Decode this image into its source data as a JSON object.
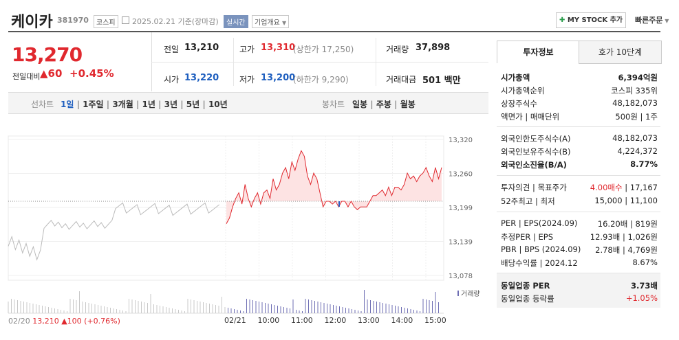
{
  "header": {
    "company_name": "케이카",
    "code": "381970",
    "market": "코스피",
    "date_basis": "2025.02.21  기준(장마감)",
    "realtime_tag": "실시간",
    "overview_tag": "기업개요",
    "mystock_button": "MY STOCK 추가",
    "quick_order": "빠른주문"
  },
  "price": {
    "current": "13,270",
    "change_label": "전일대비",
    "change": "60",
    "change_pct": "+0.45%"
  },
  "summary": {
    "prev_label": "전일",
    "prev": "13,210",
    "high_label": "고가",
    "high": "13,310",
    "upper_limit": "(상한가 17,250)",
    "volume_label": "거래량",
    "volume": "37,898",
    "open_label": "시가",
    "open": "13,220",
    "low_label": "저가",
    "low": "13,200",
    "lower_limit": "(하한가 9,290)",
    "amount_label": "거래대금",
    "amount": "501 백만"
  },
  "period_tabs": {
    "line_label": "선차트",
    "line": [
      "1일",
      "1주일",
      "3개월",
      "1년",
      "3년",
      "5년",
      "10년"
    ],
    "candle_label": "봉차트",
    "candle": [
      "일봉",
      "주봉",
      "월봉"
    ]
  },
  "chart_data": {
    "type": "line",
    "y_ticks": [
      "13,320",
      "13,260",
      "13,199",
      "13,139",
      "13,078"
    ],
    "ylim": [
      13078,
      13320
    ],
    "baseline": 13210,
    "x_ticks": [
      "02/21",
      "10:00",
      "11:00",
      "12:00",
      "13:00",
      "14:00",
      "15:00"
    ],
    "volume_label": "거래량",
    "prev_day_summary": {
      "date": "02/20",
      "close": "13,210",
      "change": "100",
      "pct": "(+0.76%)"
    },
    "series": [
      {
        "values": [
          13170,
          13180,
          13200,
          13215,
          13225,
          13205,
          13240,
          13215,
          13200,
          13215,
          13225,
          13205,
          13225,
          13230,
          13215,
          13250,
          13230,
          13240,
          13260,
          13270,
          13250,
          13280,
          13265,
          13285,
          13300,
          13290,
          13255,
          13240,
          13260,
          13250,
          13225,
          13200,
          13210,
          13210,
          13205,
          13210,
          13200,
          13210,
          13210,
          13200,
          13210,
          13200,
          13195,
          13200,
          13200,
          13200,
          13210,
          13220,
          13220,
          13225,
          13230,
          13220,
          13235,
          13220,
          13235,
          13235,
          13230,
          13240,
          13260,
          13250,
          13255,
          13245,
          13255,
          13260,
          13270,
          13255,
          13245,
          13270,
          13250,
          13270
        ]
      }
    ]
  },
  "info_tabs": [
    "투자정보",
    "호가 10단계"
  ],
  "info_rows": [
    {
      "label": "시가총액",
      "value": "6,394억원"
    },
    {
      "label": "시가총액순위",
      "value": "코스피 335위"
    },
    {
      "label": "상장주식수",
      "value": "48,182,073"
    },
    {
      "label": "액면가 | 매매단위",
      "value": "500원  |  1주"
    },
    {
      "label": "외국인한도주식수(A)",
      "value": "48,182,073"
    },
    {
      "label": "외국인보유주식수(B)",
      "value": "4,224,372"
    },
    {
      "label": "외국인소진율(B/A)",
      "value": "8.77%"
    },
    {
      "label": "투자의견 | 목표주가",
      "value_red": "4.00매수",
      "value": "17,167"
    },
    {
      "label": "52주최고 | 최저",
      "value": "15,000  |  11,100"
    },
    {
      "label": "PER | EPS(2024.09)",
      "value": "16.20배  |  819원"
    },
    {
      "label": "추정PER | EPS",
      "value": "12.93배  |  1,026원"
    },
    {
      "label": "PBR | BPS (2024.09)",
      "value": "2.78배  |  4,769원"
    },
    {
      "label": "배당수익률 | 2024.12",
      "value": "8.67%"
    },
    {
      "label": "동일업종 PER",
      "value": "3.73배"
    },
    {
      "label": "동일업종 등락률",
      "value": "+1.05%"
    }
  ]
}
